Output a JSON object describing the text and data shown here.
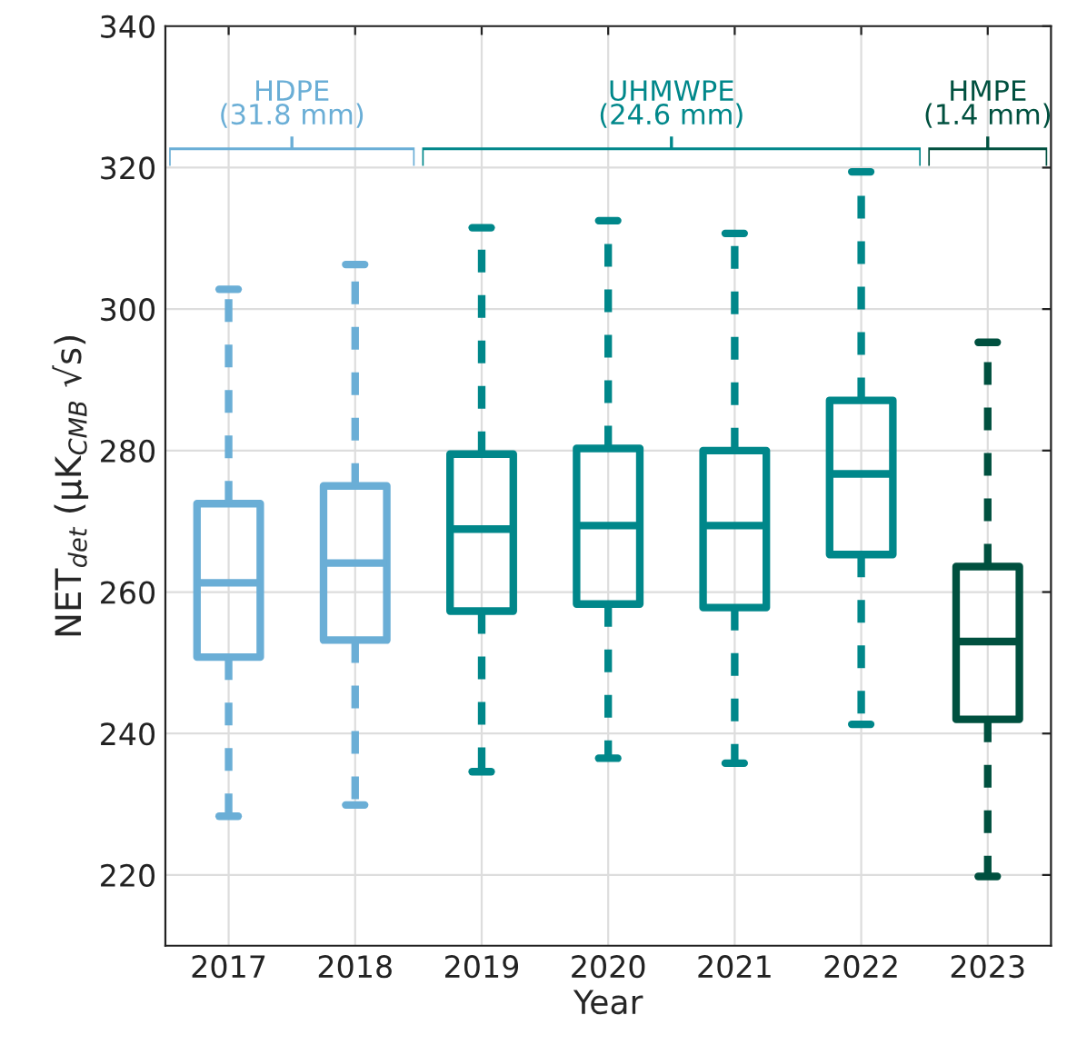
{
  "chart_data": {
    "type": "box",
    "xlabel": "Year",
    "ylabel": "NET$_{det}$ (μK$_{CMB}$ √s)",
    "categories": [
      "2017",
      "2018",
      "2019",
      "2020",
      "2021",
      "2022",
      "2023"
    ],
    "series": [
      {
        "name": "HDPE\n(31.8 mm)",
        "color": "#6aaed6",
        "boxes": [
          {
            "low": 228.3,
            "q1": 250.8,
            "median": 261.3,
            "q3": 272.5,
            "high": 302.8
          },
          {
            "low": 229.9,
            "q1": 253.2,
            "median": 264.1,
            "q3": 275,
            "high": 306.3
          },
          null,
          null,
          null,
          null,
          null
        ]
      },
      {
        "name": "UHMWPE\n(24.6 mm)",
        "color": "#00878a",
        "boxes": [
          null,
          null,
          {
            "low": 234.6,
            "q1": 257.3,
            "median": 268.9,
            "q3": 279.5,
            "high": 311.5
          },
          {
            "low": 236.5,
            "q1": 258.3,
            "median": 269.4,
            "q3": 280.3,
            "high": 312.5
          },
          {
            "low": 235.8,
            "q1": 257.8,
            "median": 269.4,
            "q3": 280,
            "high": 310.7
          },
          {
            "low": 241.3,
            "q1": 265.3,
            "median": 276.7,
            "q3": 287.1,
            "high": 319.4
          },
          null
        ]
      },
      {
        "name": "HMPE\n(1.4 mm)",
        "color": "#00503f",
        "boxes": [
          null,
          null,
          null,
          null,
          null,
          null,
          {
            "low": 219.8,
            "q1": 242,
            "median": 253,
            "q3": 263.6,
            "high": 295.3
          }
        ]
      }
    ],
    "ylim": [
      210,
      340
    ],
    "yticks": [
      220,
      240,
      260,
      280,
      300,
      320,
      340
    ],
    "grid": true,
    "legend": false,
    "line_style": "dashed"
  }
}
